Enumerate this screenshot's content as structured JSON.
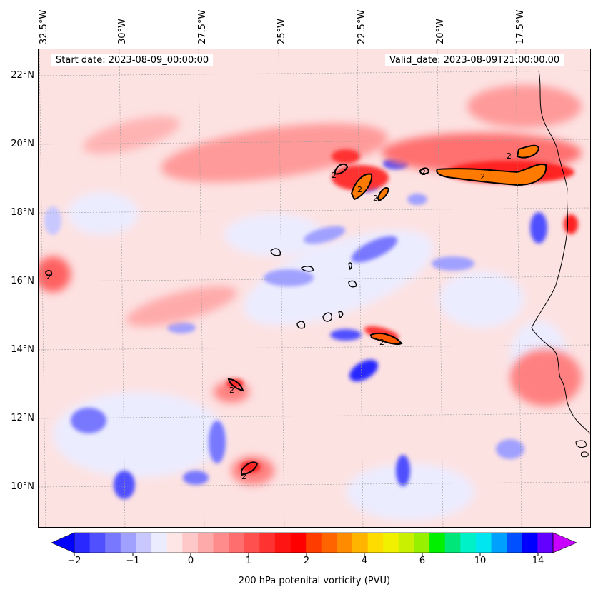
{
  "map": {
    "start_label": "Start date: 2023-08-09_00:00:00",
    "valid_label": "Valid_date: 2023-08-09T21:00:00.00",
    "lon_ticks": [
      "32.5°W",
      "30°W",
      "27.5°W",
      "25°W",
      "22.5°W",
      "20°W",
      "17.5°W"
    ],
    "lat_ticks": [
      "22°N",
      "20°N",
      "18°N",
      "16°N",
      "14°N",
      "12°N",
      "10°N"
    ],
    "contour_value_label": "2"
  },
  "colorbar": {
    "label": "200 hPa potenital vorticity (PVU)",
    "tick_labels": [
      "−2",
      "−1",
      "0",
      "1",
      "2",
      "4",
      "6",
      "10",
      "14"
    ],
    "colors": [
      "#0000ff",
      "#2828ff",
      "#5050ff",
      "#7878ff",
      "#a0a0ff",
      "#c8c8ff",
      "#ececff",
      "#ffe6e6",
      "#ffc8c8",
      "#ffaaaa",
      "#ff8c8c",
      "#ff6e6e",
      "#ff5050",
      "#ff3232",
      "#ff1414",
      "#ff0000",
      "#ff3c00",
      "#ff6400",
      "#ff8c00",
      "#ffb400",
      "#ffdc00",
      "#f0f000",
      "#c8f000",
      "#96f000",
      "#00f000",
      "#00e678",
      "#00f0c8",
      "#00e6f0",
      "#00a0ff",
      "#0050ff",
      "#0000ff",
      "#6400ff",
      "#c800ff"
    ]
  }
}
